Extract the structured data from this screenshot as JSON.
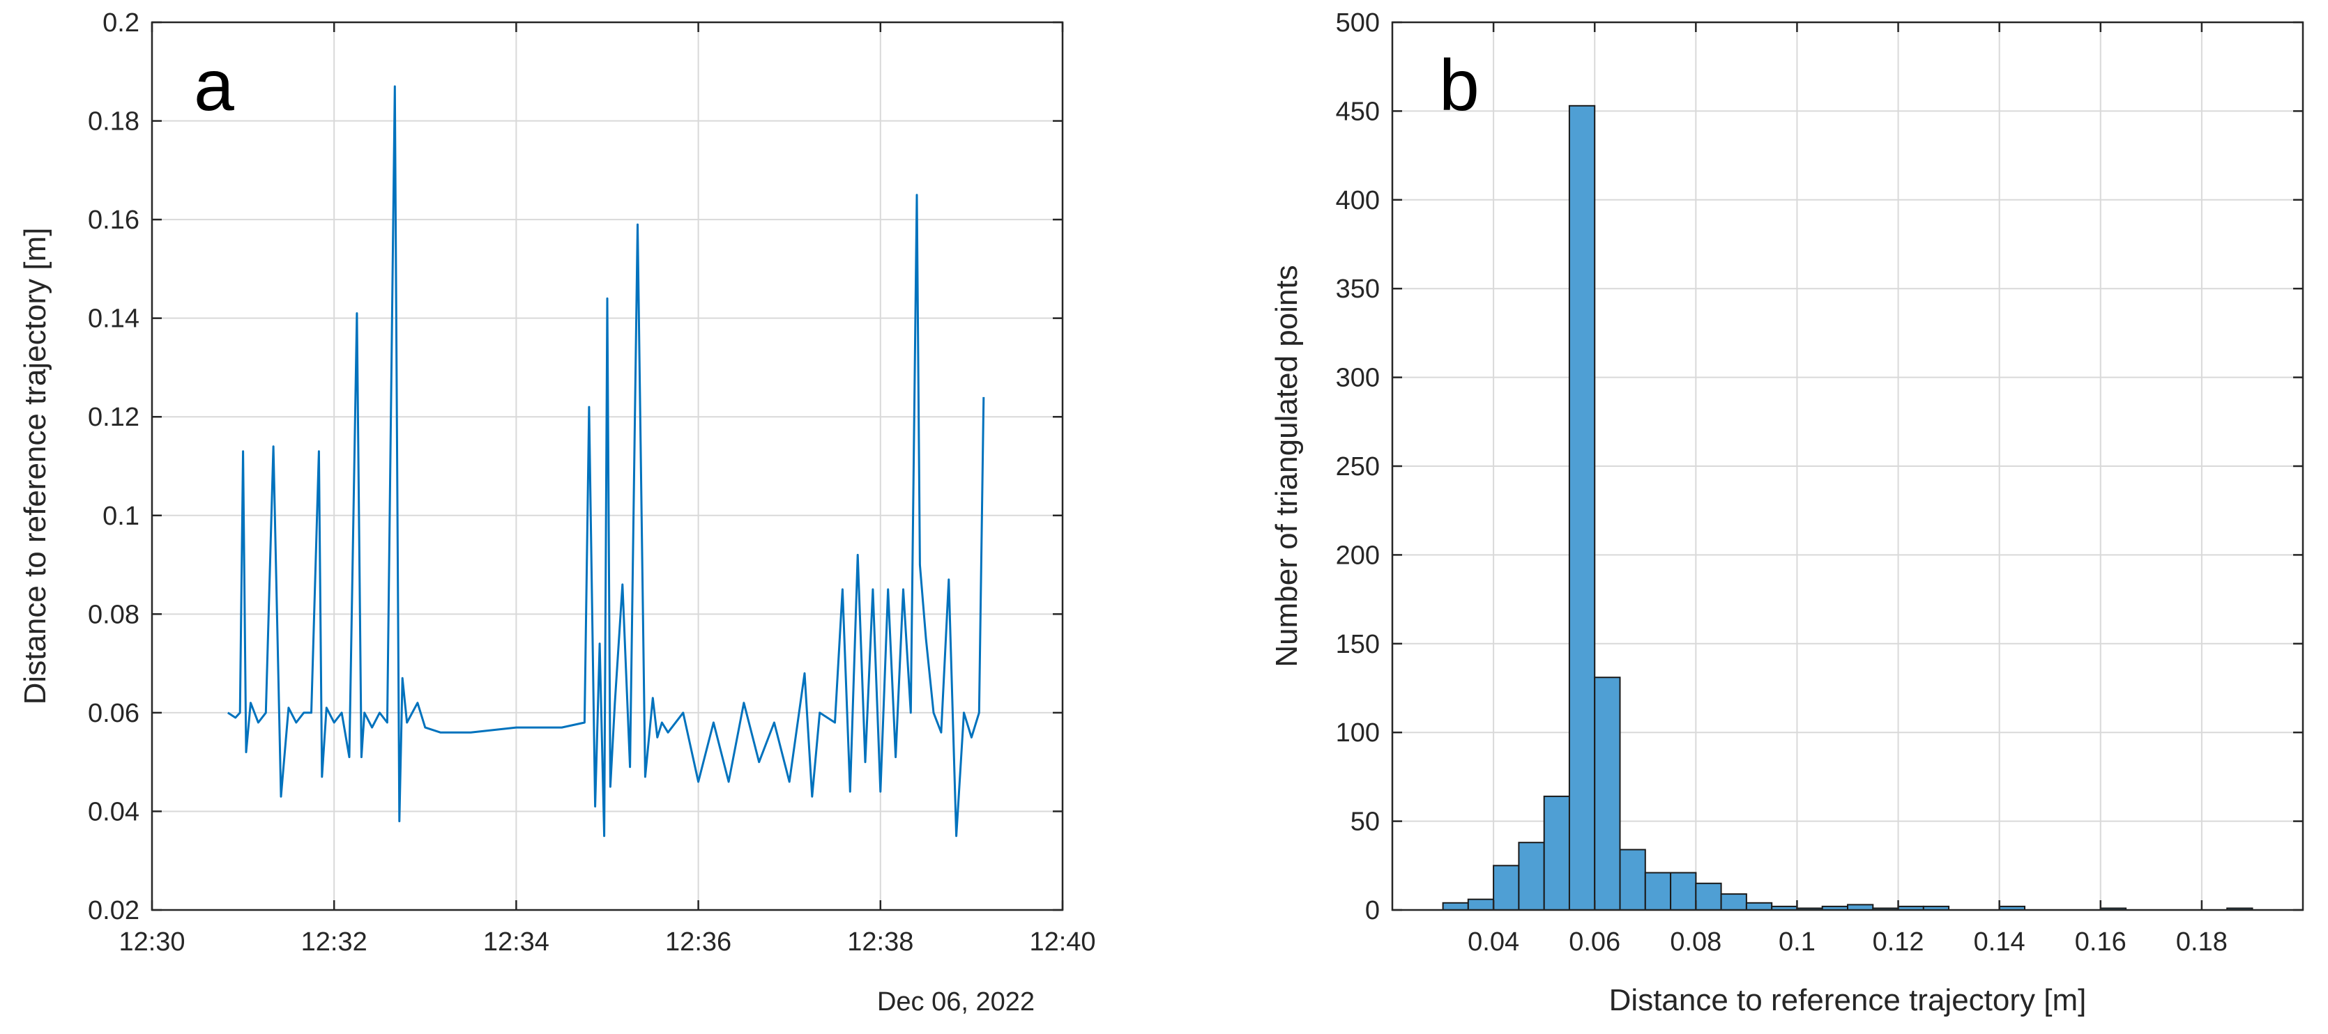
{
  "chart_data": [
    {
      "type": "line",
      "panel_label": "a",
      "xlabel": "",
      "x_date_label": "Dec 06, 2022",
      "ylabel": "Distance to reference trajectory [m]",
      "xlim": [
        "12:30",
        "12:40"
      ],
      "ylim": [
        0.02,
        0.2
      ],
      "x_ticks": [
        "12:30",
        "12:32",
        "12:34",
        "12:36",
        "12:38",
        "12:40"
      ],
      "y_ticks": [
        "0.02",
        "0.04",
        "0.06",
        "0.08",
        "0.1",
        "0.12",
        "0.14",
        "0.16",
        "0.18",
        "0.2"
      ],
      "grid": true,
      "color": "#0072bd",
      "series": [
        {
          "x": [
            "12:30:50",
            "12:30:55",
            "12:30:58",
            "12:31:00",
            "12:31:02",
            "12:31:05",
            "12:31:10",
            "12:31:15",
            "12:31:20",
            "12:31:25",
            "12:31:30",
            "12:31:35",
            "12:31:40",
            "12:31:45",
            "12:31:50",
            "12:31:52",
            "12:31:55",
            "12:32:00",
            "12:32:05",
            "12:32:10",
            "12:32:15",
            "12:32:18",
            "12:32:20",
            "12:32:25",
            "12:32:30",
            "12:32:35",
            "12:32:40",
            "12:32:43",
            "12:32:45",
            "12:32:48",
            "12:32:55",
            "12:33:00",
            "12:33:10",
            "12:33:30",
            "12:34:00",
            "12:34:30",
            "12:34:45",
            "12:34:48",
            "12:34:52",
            "12:34:55",
            "12:34:58",
            "12:35:00",
            "12:35:02",
            "12:35:05",
            "12:35:10",
            "12:35:15",
            "12:35:20",
            "12:35:25",
            "12:35:30",
            "12:35:33",
            "12:35:36",
            "12:35:40",
            "12:35:50",
            "12:36:00",
            "12:36:10",
            "12:36:20",
            "12:36:30",
            "12:36:40",
            "12:36:50",
            "12:37:00",
            "12:37:10",
            "12:37:15",
            "12:37:20",
            "12:37:30",
            "12:37:35",
            "12:37:40",
            "12:37:45",
            "12:37:50",
            "12:37:55",
            "12:38:00",
            "12:38:05",
            "12:38:10",
            "12:38:15",
            "12:38:20",
            "12:38:24",
            "12:38:26",
            "12:38:30",
            "12:38:35",
            "12:38:40",
            "12:38:45",
            "12:38:50",
            "12:38:55",
            "12:39:00",
            "12:39:05",
            "12:39:08"
          ],
          "values": [
            0.06,
            0.059,
            0.06,
            0.113,
            0.052,
            0.062,
            0.058,
            0.06,
            0.114,
            0.043,
            0.061,
            0.058,
            0.06,
            0.06,
            0.113,
            0.047,
            0.061,
            0.058,
            0.06,
            0.051,
            0.141,
            0.051,
            0.06,
            0.057,
            0.06,
            0.058,
            0.187,
            0.038,
            0.067,
            0.058,
            0.062,
            0.057,
            0.056,
            0.056,
            0.057,
            0.057,
            0.058,
            0.122,
            0.041,
            0.074,
            0.035,
            0.144,
            0.045,
            0.062,
            0.086,
            0.049,
            0.159,
            0.047,
            0.063,
            0.055,
            0.058,
            0.056,
            0.06,
            0.046,
            0.058,
            0.046,
            0.062,
            0.05,
            0.058,
            0.046,
            0.068,
            0.043,
            0.06,
            0.058,
            0.085,
            0.044,
            0.092,
            0.05,
            0.085,
            0.044,
            0.085,
            0.051,
            0.085,
            0.06,
            0.165,
            0.09,
            0.075,
            0.06,
            0.056,
            0.087,
            0.035,
            0.06,
            0.055,
            0.06,
            0.124
          ]
        }
      ]
    },
    {
      "type": "bar",
      "panel_label": "b",
      "xlabel": "Distance to reference trajectory [m]",
      "ylabel": "Number of triangulated points",
      "xlim": [
        0.02,
        0.2
      ],
      "ylim": [
        0,
        500
      ],
      "x_ticks": [
        "0.04",
        "0.06",
        "0.08",
        "0.1",
        "0.12",
        "0.14",
        "0.16",
        "0.18"
      ],
      "y_ticks": [
        "0",
        "50",
        "100",
        "150",
        "200",
        "250",
        "300",
        "350",
        "400",
        "450",
        "500"
      ],
      "grid": true,
      "color": "#4f9fd4",
      "bin_width": 0.005,
      "bins": [
        {
          "start": 0.03,
          "count": 4
        },
        {
          "start": 0.035,
          "count": 6
        },
        {
          "start": 0.04,
          "count": 25
        },
        {
          "start": 0.045,
          "count": 38
        },
        {
          "start": 0.05,
          "count": 64
        },
        {
          "start": 0.055,
          "count": 453
        },
        {
          "start": 0.06,
          "count": 131
        },
        {
          "start": 0.065,
          "count": 34
        },
        {
          "start": 0.07,
          "count": 21
        },
        {
          "start": 0.075,
          "count": 21
        },
        {
          "start": 0.08,
          "count": 15
        },
        {
          "start": 0.085,
          "count": 9
        },
        {
          "start": 0.09,
          "count": 4
        },
        {
          "start": 0.095,
          "count": 2
        },
        {
          "start": 0.1,
          "count": 1
        },
        {
          "start": 0.105,
          "count": 2
        },
        {
          "start": 0.11,
          "count": 3
        },
        {
          "start": 0.115,
          "count": 1
        },
        {
          "start": 0.12,
          "count": 2
        },
        {
          "start": 0.125,
          "count": 2
        },
        {
          "start": 0.14,
          "count": 2
        },
        {
          "start": 0.16,
          "count": 1
        },
        {
          "start": 0.185,
          "count": 1
        }
      ]
    }
  ]
}
